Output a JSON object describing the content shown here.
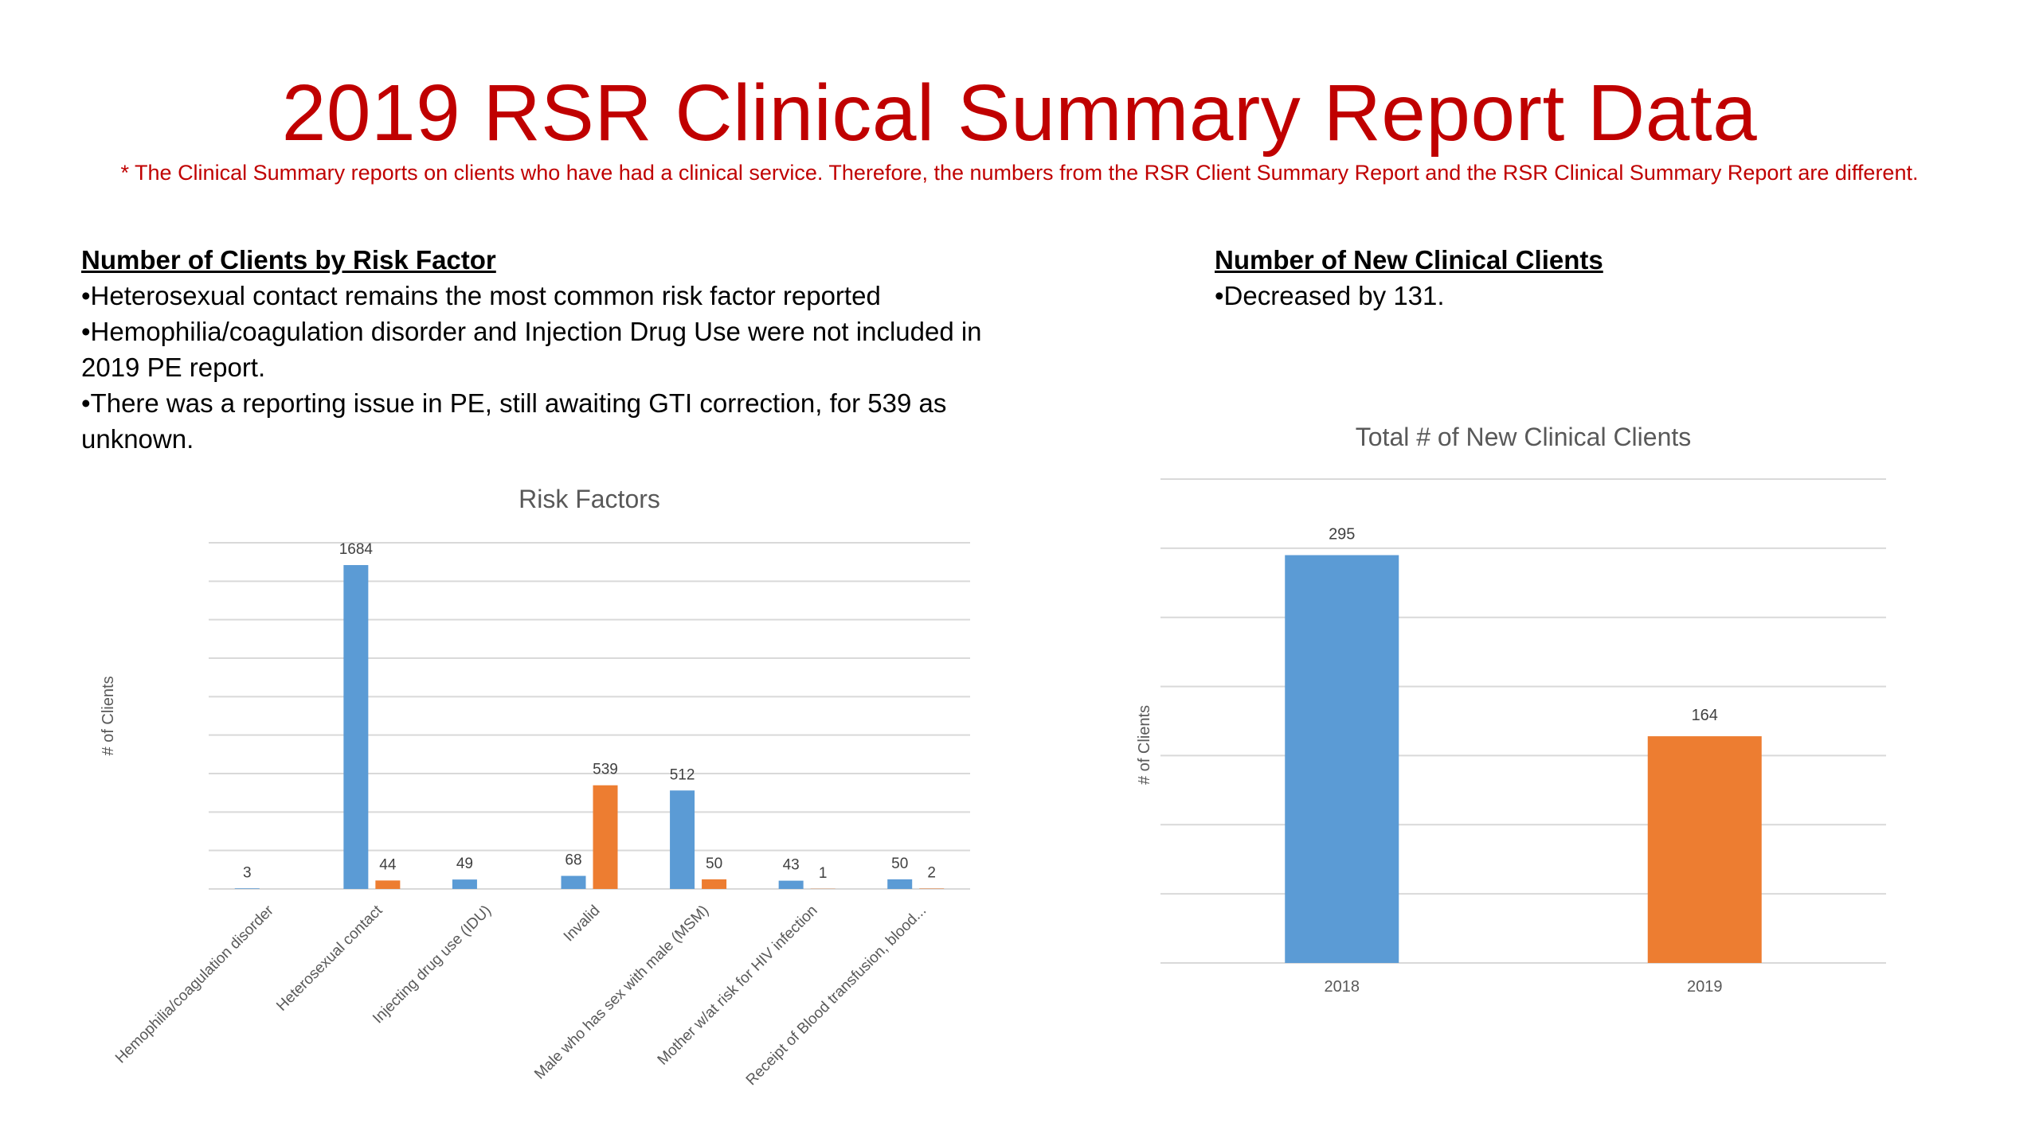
{
  "slide": {
    "title": "2019 RSR Clinical Summary Report Data",
    "subtitle": "* The Clinical Summary reports on clients who have had a clinical service. Therefore, the numbers from the RSR Client Summary Report and the RSR Clinical Summary Report are different."
  },
  "left_section": {
    "heading": "Number of Clients by Risk Factor",
    "bullets": [
      "•Heterosexual contact remains the most common risk factor reported",
      "•Hemophilia/coagulation disorder and Injection Drug Use were not included in 2019 PE report.",
      "•There was a reporting issue in PE, still awaiting GTI correction, for 539 as unknown."
    ]
  },
  "right_section": {
    "heading": "Number of New Clinical Clients",
    "bullets": [
      "•Decreased by 131."
    ]
  },
  "colors": {
    "title_red": "#c00000",
    "series_blue": "#5b9bd5",
    "series_orange": "#ed7d31",
    "grid": "#d9d9d9",
    "axis_text": "#595959"
  },
  "chart_data": [
    {
      "type": "bar",
      "title": "Risk Factors",
      "ylabel": "# of Clients",
      "xlabel": "",
      "categories": [
        "Hemophilia/coagulation disorder",
        "Heterosexual contact",
        "Injecting drug use (IDU)",
        "Invalid",
        "Male who has sex with male (MSM)",
        "Mother w/at risk for HIV infection",
        "Receipt of Blood transfusion, blood..."
      ],
      "series": [
        {
          "values": [
            3,
            1684,
            49,
            68,
            512,
            43,
            50
          ],
          "color": "#5b9bd5"
        },
        {
          "values": [
            null,
            44,
            null,
            539,
            50,
            1,
            2
          ],
          "color": "#ed7d31"
        }
      ],
      "ylim": [
        0,
        1800
      ],
      "grid": true,
      "legend": "none"
    },
    {
      "type": "bar",
      "title": "Total # of New Clinical Clients",
      "ylabel": "# of Clients",
      "xlabel": "",
      "categories": [
        "2018",
        "2019"
      ],
      "values": [
        295,
        164
      ],
      "colors": [
        "#5b9bd5",
        "#ed7d31"
      ],
      "ylim": [
        0,
        350
      ],
      "grid": true,
      "legend": "none"
    }
  ]
}
